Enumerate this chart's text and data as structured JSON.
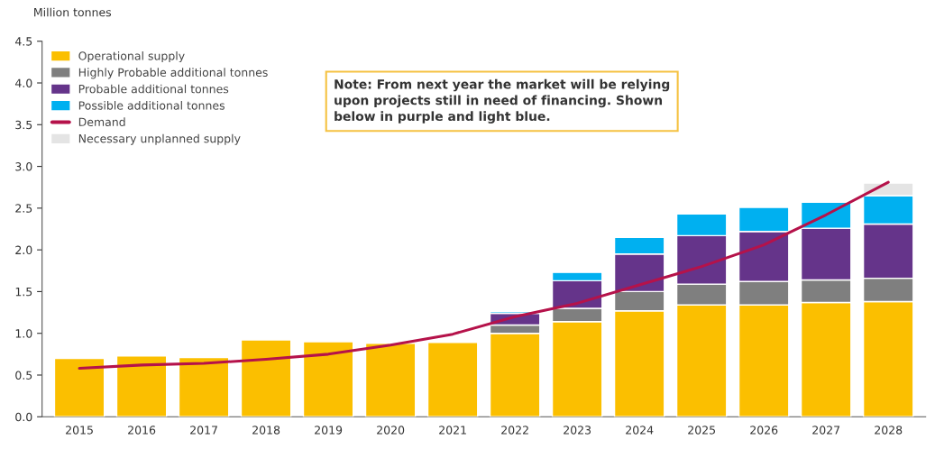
{
  "chart_data": {
    "type": "bar",
    "stacked": true,
    "ylabel": "Million tonnes",
    "categories": [
      "2015",
      "2016",
      "2017",
      "2018",
      "2019",
      "2020",
      "2021",
      "2022",
      "2023",
      "2024",
      "2025",
      "2026",
      "2027",
      "2028"
    ],
    "series": [
      {
        "name": "Operational supply",
        "color": "#fbbf00",
        "values": [
          0.7,
          0.73,
          0.71,
          0.92,
          0.9,
          0.88,
          0.89,
          1.0,
          1.14,
          1.27,
          1.34,
          1.34,
          1.37,
          1.38
        ]
      },
      {
        "name": "Highly Probable additional tonnes",
        "color": "#7f7f7f",
        "values": [
          null,
          null,
          null,
          null,
          null,
          null,
          null,
          0.1,
          0.16,
          0.23,
          0.25,
          0.28,
          0.27,
          0.28
        ]
      },
      {
        "name": "Probable additional tonnes",
        "color": "#65348a",
        "values": [
          null,
          null,
          null,
          null,
          null,
          null,
          null,
          0.14,
          0.33,
          0.45,
          0.58,
          0.6,
          0.62,
          0.65
        ]
      },
      {
        "name": "Possible additional tonnes",
        "color": "#00b0f0",
        "values": [
          null,
          null,
          null,
          null,
          null,
          null,
          null,
          0.02,
          0.1,
          0.2,
          0.26,
          0.29,
          0.31,
          0.34
        ]
      },
      {
        "name": "Demand",
        "type": "line",
        "color": "#b5124a",
        "values": [
          0.58,
          0.62,
          0.64,
          0.69,
          0.75,
          0.86,
          0.99,
          1.2,
          1.36,
          1.58,
          1.8,
          2.06,
          2.42,
          2.81
        ]
      },
      {
        "name": "Necessary unplanned supply",
        "color": "#e4e4e4",
        "values": [
          null,
          null,
          null,
          null,
          null,
          null,
          null,
          null,
          null,
          null,
          null,
          null,
          null,
          0.15
        ]
      }
    ],
    "ylim": [
      0,
      4.5
    ],
    "yticks": [
      {
        "value": 0,
        "label": "0.0"
      },
      {
        "value": 0.5,
        "label": "0.5"
      },
      {
        "value": 1,
        "label": "1.0"
      },
      {
        "value": 1.5,
        "label": "1.5"
      },
      {
        "value": 2,
        "label": "2.0"
      },
      {
        "value": 2.5,
        "label": "2.5"
      },
      {
        "value": 3,
        "label": "3.0"
      },
      {
        "value": 3.5,
        "label": "3.5"
      },
      {
        "value": 4,
        "label": "4.0"
      },
      {
        "value": 4.5,
        "label": "4.5"
      }
    ],
    "grid": false,
    "legend": "top left",
    "annotations": [
      "Note: From next year the market will be relying\nupon projects still in need of financing. Shown\nbelow in purple and light blue."
    ]
  }
}
